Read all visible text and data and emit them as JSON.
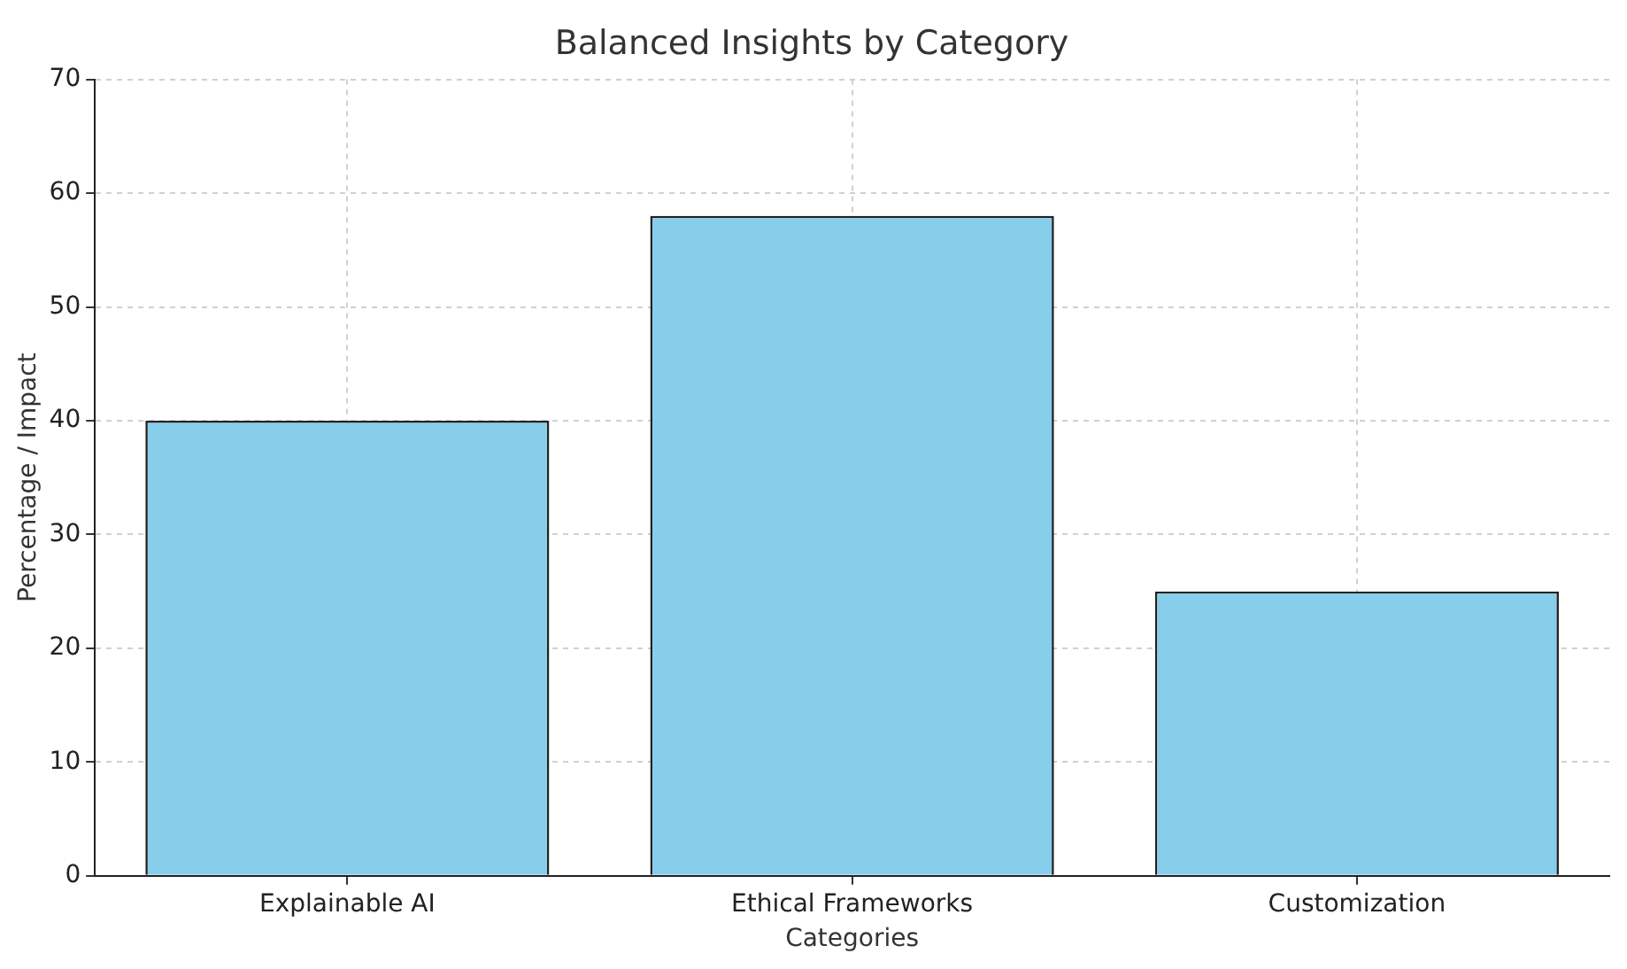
{
  "chart_data": {
    "type": "bar",
    "title": "Balanced Insights by Category",
    "xlabel": "Categories",
    "ylabel": "Percentage / Impact",
    "categories": [
      "Explainable AI",
      "Ethical Frameworks",
      "Customization"
    ],
    "values": [
      40,
      58,
      25
    ],
    "color": "#87ceeb",
    "ylim": [
      0,
      70
    ],
    "yticks": [
      0,
      10,
      20,
      30,
      40,
      50,
      60,
      70
    ],
    "grid": true,
    "legend": false
  }
}
